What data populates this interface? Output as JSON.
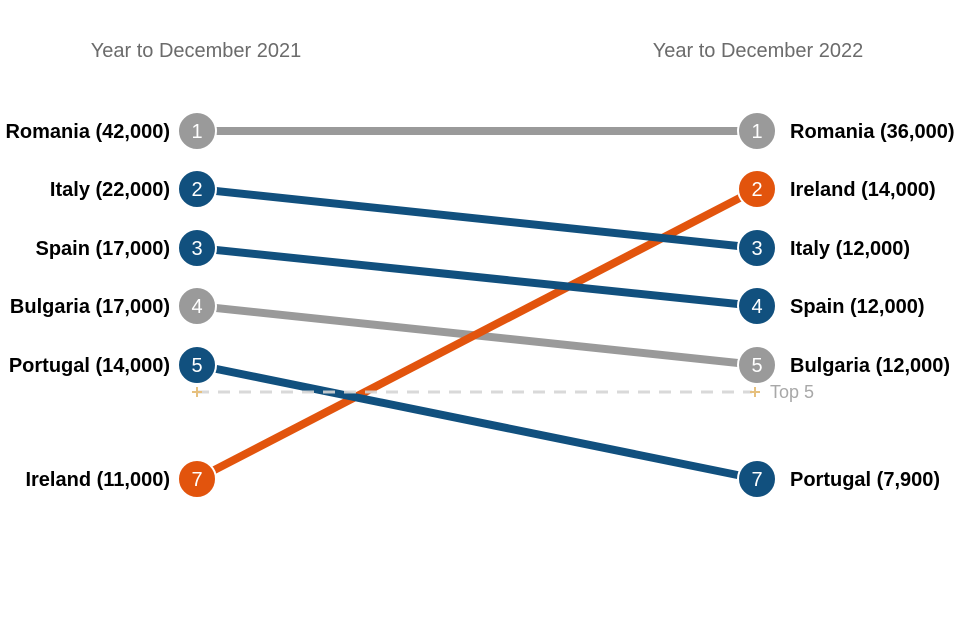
{
  "chart": {
    "left_header": "Year to December 2021",
    "right_header": "Year to December 2022"
  },
  "colors": {
    "blue": "#11507E",
    "orange": "#E2540D",
    "gray": "#9A9A9A",
    "dash_line": "#D5D5D5",
    "annotation_text": "#A8A8A8",
    "header_text": "#6B6B6B",
    "label_text": "#000000",
    "plus_marker": "#E6C07E",
    "rank_number_text": "#FFFFFF",
    "background": "#FFFFFF"
  },
  "chart_data": {
    "type": "slope",
    "columns": [
      "Year to December 2021",
      "Year to December 2022"
    ],
    "annotation": {
      "label": "Top 5",
      "position": "between ranks 5 and 6"
    },
    "series": [
      {
        "name": "Romania",
        "color": "gray",
        "left": {
          "rank": 1,
          "value": 42000,
          "label": "Romania (42,000)"
        },
        "right": {
          "rank": 1,
          "value": 36000,
          "label": "Romania (36,000)"
        }
      },
      {
        "name": "Bulgaria",
        "color": "gray",
        "left": {
          "rank": 4,
          "value": 17000,
          "label": "Bulgaria (17,000)"
        },
        "right": {
          "rank": 5,
          "value": 12000,
          "label": "Bulgaria (12,000)"
        }
      },
      {
        "name": "Ireland",
        "color": "orange",
        "left": {
          "rank": 7,
          "value": 11000,
          "label": "Ireland (11,000)"
        },
        "right": {
          "rank": 2,
          "value": 14000,
          "label": "Ireland (14,000)"
        }
      },
      {
        "name": "Italy",
        "color": "blue",
        "left": {
          "rank": 2,
          "value": 22000,
          "label": "Italy (22,000)"
        },
        "right": {
          "rank": 3,
          "value": 12000,
          "label": "Italy (12,000)"
        }
      },
      {
        "name": "Spain",
        "color": "blue",
        "left": {
          "rank": 3,
          "value": 17000,
          "label": "Spain (17,000)"
        },
        "right": {
          "rank": 4,
          "value": 12000,
          "label": "Spain (12,000)"
        }
      },
      {
        "name": "Portugal",
        "color": "blue",
        "left": {
          "rank": 5,
          "value": 14000,
          "label": "Portugal (14,000)"
        },
        "right": {
          "rank": 7,
          "value": 7900,
          "label": "Portugal (7,900)"
        }
      }
    ]
  }
}
